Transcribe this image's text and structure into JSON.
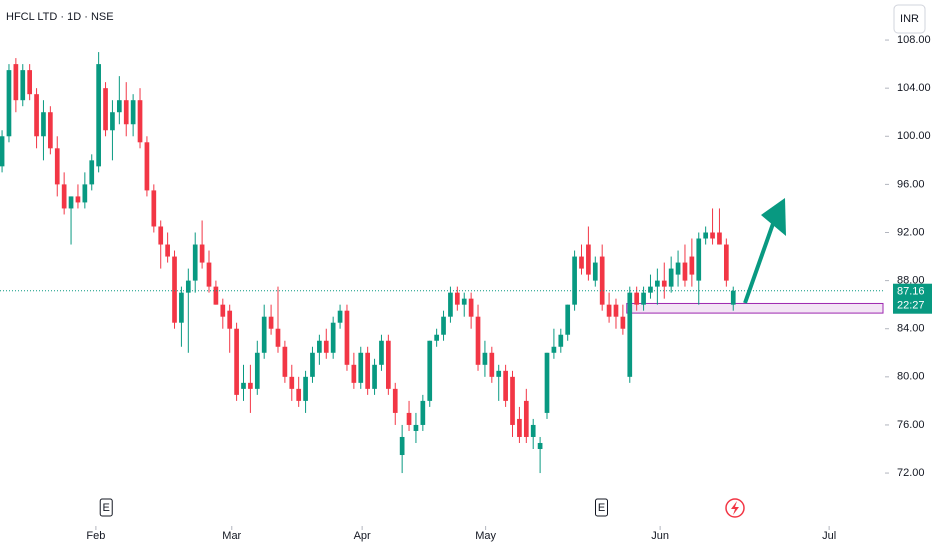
{
  "chart_data": {
    "type": "candlestick",
    "title": "HFCL LTD · 1D · NSE",
    "currency": "INR",
    "up_color": "#089981",
    "down_color": "#f23645",
    "open": [
      97.5,
      100,
      106,
      103,
      105.5,
      103.5,
      100,
      102,
      99,
      96,
      94,
      95,
      94.5,
      96,
      97.5,
      104,
      100.5,
      102,
      103,
      101,
      103,
      99.5,
      95.5,
      92.5,
      91,
      90,
      84.5,
      87,
      88,
      91,
      89.5,
      87.5,
      86,
      85.5,
      84,
      79,
      79.5,
      79,
      82,
      85,
      84,
      82.5,
      80,
      79,
      78,
      80,
      82,
      83,
      82,
      84.5,
      85.5,
      81,
      79.5,
      82,
      79,
      81,
      83,
      79,
      73.5,
      77,
      75.5,
      76,
      78,
      83,
      83.5,
      85,
      87,
      86,
      86.5,
      85,
      81,
      82,
      80,
      80.5,
      80,
      76.5,
      78,
      75,
      74,
      77,
      82,
      82.5,
      83.5,
      86,
      90,
      91,
      88,
      90,
      86,
      86,
      85,
      80,
      87,
      86,
      87,
      87.5,
      88,
      87.5,
      88.5,
      89.5,
      90,
      88,
      91.5,
      92,
      92,
      91,
      86
    ],
    "high": [
      100.5,
      106,
      106.5,
      106,
      106,
      104,
      103,
      102.5,
      100,
      97,
      95,
      96,
      97,
      98.5,
      107,
      104.5,
      103,
      105,
      104.5,
      103.5,
      104,
      100,
      96,
      93,
      92,
      90.5,
      87.5,
      89,
      92,
      93,
      90.5,
      88,
      86.5,
      86,
      84.5,
      81,
      81,
      83,
      86,
      86,
      87.5,
      83,
      81,
      80,
      80.5,
      82.5,
      83.5,
      84,
      85,
      86,
      86,
      82,
      82.5,
      82.5,
      81.5,
      83.5,
      83.5,
      79.5,
      76,
      78,
      77,
      78.5,
      83,
      84,
      85.5,
      87.5,
      87.5,
      87,
      87,
      86,
      83,
      82.5,
      81,
      81,
      80.5,
      77.5,
      79,
      76.5,
      75,
      82,
      84,
      84,
      86,
      90.5,
      91,
      92.5,
      90,
      91,
      87,
      86.5,
      86,
      87.5,
      87.5,
      87.5,
      88.5,
      89,
      89.5,
      90,
      90.5,
      91,
      91.5,
      92,
      92.5,
      94,
      94,
      91.5,
      87.5
    ],
    "low": [
      97,
      99.5,
      102,
      102.5,
      103,
      99,
      98,
      98.5,
      95,
      93.5,
      91,
      94,
      94,
      95.5,
      97,
      100,
      98,
      101,
      100,
      100,
      99,
      95,
      92,
      89,
      89.5,
      84,
      82.5,
      82,
      87,
      89,
      87,
      86,
      84,
      82,
      78,
      78,
      77,
      78.5,
      81.5,
      83.5,
      82,
      79.5,
      78,
      77.5,
      77,
      79.5,
      81,
      81.5,
      81.5,
      84,
      80.5,
      79,
      79,
      78.5,
      78.5,
      80.5,
      78.5,
      76,
      72,
      75.5,
      74.5,
      75.5,
      77.5,
      82.5,
      83,
      84.5,
      85.5,
      85,
      84,
      80.5,
      80,
      79.5,
      78,
      77.5,
      75,
      74.5,
      74.5,
      74,
      72,
      76.5,
      81.5,
      82,
      83,
      85.5,
      88.5,
      88,
      87.5,
      85.5,
      84.5,
      84,
      83.5,
      79.5,
      85.5,
      85.5,
      86.5,
      86,
      86.5,
      87,
      87.5,
      87.5,
      87.5,
      86,
      91,
      91,
      91,
      87.5,
      85.5
    ],
    "close": [
      100,
      105.5,
      103,
      105.5,
      103.5,
      100,
      102,
      99,
      96,
      94,
      95,
      94.5,
      96,
      98,
      106,
      100.5,
      102,
      103,
      101,
      103,
      99.5,
      95.5,
      92.5,
      91,
      90,
      84.5,
      87,
      88,
      91,
      89.5,
      87.5,
      86,
      85,
      84,
      78.5,
      79.5,
      79,
      82,
      85,
      84,
      82.5,
      80,
      79,
      78,
      80,
      82,
      83,
      82,
      84.5,
      85.5,
      81,
      79.5,
      82,
      79,
      81,
      83,
      79,
      77,
      75,
      76,
      76,
      78,
      83,
      83.5,
      85,
      87,
      86,
      86.5,
      85,
      81,
      82,
      80,
      80.5,
      78,
      76,
      75,
      75,
      76,
      74.5,
      82,
      82.5,
      83.5,
      86,
      90,
      89,
      88.5,
      89.5,
      86,
      85,
      85,
      84,
      87,
      86,
      87,
      87.5,
      88,
      87.5,
      89,
      89.5,
      88,
      88.5,
      91.5,
      92,
      91.5,
      91,
      88,
      87.16
    ],
    "xlim": [
      -0.3,
      128
    ],
    "xticks": [
      {
        "value": 13.6,
        "label": "Feb"
      },
      {
        "value": 33.3,
        "label": "Mar"
      },
      {
        "value": 52.2,
        "label": "Apr"
      },
      {
        "value": 70.1,
        "label": "May"
      },
      {
        "value": 95.4,
        "label": "Jun"
      },
      {
        "value": 119.9,
        "label": "Jul"
      }
    ],
    "ylim": [
      69.76,
      111.33
    ],
    "yticks": [
      {
        "value": 72,
        "label": "72.00"
      },
      {
        "value": 76,
        "label": "76.00"
      },
      {
        "value": 80,
        "label": "80.00"
      },
      {
        "value": 84,
        "label": "84.00"
      },
      {
        "value": 88,
        "label": "88.00"
      },
      {
        "value": 92,
        "label": "92.00"
      },
      {
        "value": 96,
        "label": "96.00"
      },
      {
        "value": 100,
        "label": "100.00"
      },
      {
        "value": 104,
        "label": "104.00"
      },
      {
        "value": 108,
        "label": "108.00"
      }
    ],
    "last_price": 87.16,
    "countdown": "22:27",
    "zone": {
      "low": 85.3,
      "high": 86.1,
      "start": 91
    },
    "events": [
      {
        "label": "E",
        "x": 15.1
      },
      {
        "label": "E",
        "x": 86.9
      }
    ]
  }
}
